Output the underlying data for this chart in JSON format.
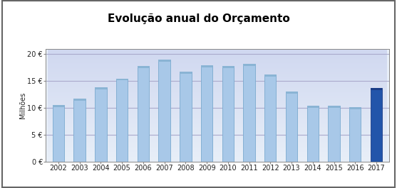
{
  "title": "Evolução anual do Orçamento",
  "ylabel": "Milhões",
  "years": [
    2002,
    2003,
    2004,
    2005,
    2006,
    2007,
    2008,
    2009,
    2010,
    2011,
    2012,
    2013,
    2014,
    2015,
    2016,
    2017
  ],
  "values": [
    10.5,
    11.7,
    13.8,
    15.5,
    17.8,
    19.0,
    16.7,
    17.9,
    17.8,
    18.2,
    16.2,
    13.0,
    10.4,
    10.4,
    10.1,
    13.7
  ],
  "bar_color_default": "#a8c8e8",
  "bar_color_highlight": "#2255aa",
  "bar_edge_default": "#7aaacf",
  "bar_edge_highlight": "#1a3d88",
  "highlight_index": 15,
  "ylim": [
    0,
    21
  ],
  "yticks": [
    0,
    5,
    10,
    15,
    20
  ],
  "ytick_labels": [
    "0 €",
    "5 €",
    "10 €",
    "15 €",
    "20 €"
  ],
  "bg_plot_top": "#e8eff8",
  "bg_plot_bottom": "#d0d8f0",
  "grid_color": "#aaaacc",
  "title_fontsize": 11,
  "axis_fontsize": 7,
  "ylabel_fontsize": 7
}
